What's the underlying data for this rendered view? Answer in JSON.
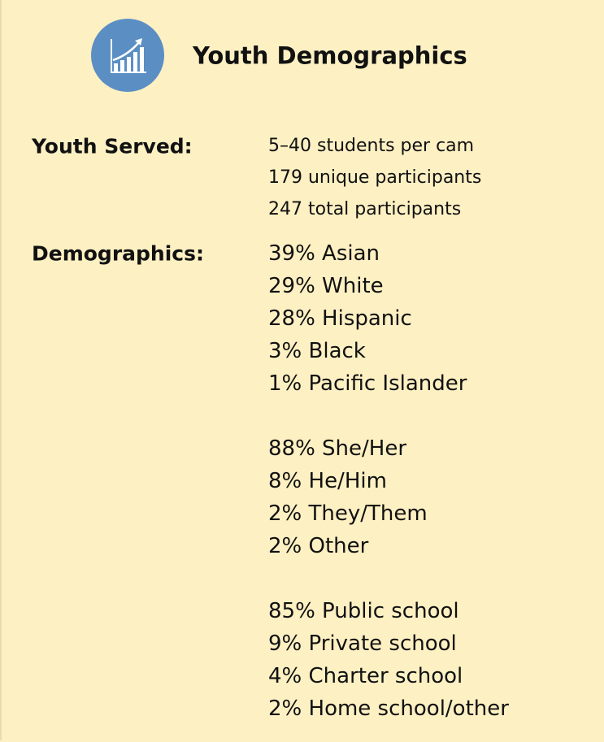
{
  "header": {
    "title": "Youth Demographics"
  },
  "sections": [
    {
      "label": "Youth Served:",
      "groups": [
        [
          "5–40 students per cam",
          "179 unique participants",
          "247 total participants"
        ]
      ]
    },
    {
      "label": "Demographics:",
      "groups": [
        [
          "39% Asian",
          "29% White",
          "28% Hispanic",
          "3% Black",
          "1% Pacific Islander"
        ],
        [
          "88% She/Her",
          "8% He/Him",
          "2% They/Them",
          "2% Other"
        ],
        [
          "85% Public school",
          "9% Private school",
          "4% Charter school",
          "2% Home school/other"
        ]
      ]
    }
  ]
}
